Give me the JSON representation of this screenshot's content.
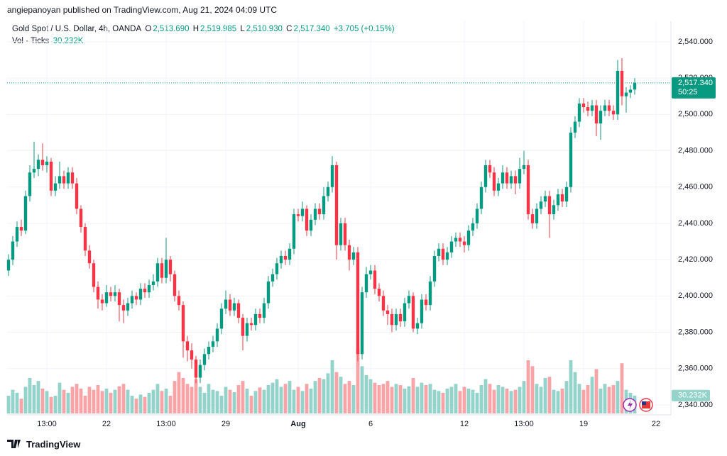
{
  "header": {
    "byline": "angiepanoyan published on TradingView.com, Aug 21, 2024 04:09 UTC"
  },
  "legend": {
    "symbol": "Gold Spot / U.S. Dollar, 4h, OANDA",
    "open_key": "O",
    "open": "2,513.690",
    "high_key": "H",
    "high": "2,519.985",
    "low_key": "L",
    "low": "2,510.930",
    "close_key": "C",
    "close": "2,517.340",
    "change": "+3.705 (+0.15%)"
  },
  "chart_data": {
    "type": "candlestick",
    "grid": true,
    "up_color": "#089981",
    "down_color": "#f23645",
    "volume_up_color": "#94d3ca",
    "volume_down_color": "#f7a4a9",
    "categories": [
      null,
      null,
      null,
      null,
      null,
      null,
      null,
      null,
      null,
      "13:00",
      null,
      null,
      null,
      null,
      null,
      null,
      null,
      null,
      null,
      null,
      null,
      null,
      null,
      "22",
      null,
      null,
      null,
      null,
      null,
      null,
      null,
      null,
      null,
      null,
      null,
      null,
      null,
      "13:00",
      null,
      null,
      null,
      null,
      null,
      null,
      null,
      null,
      null,
      null,
      null,
      null,
      null,
      "29",
      null,
      null,
      null,
      null,
      null,
      null,
      null,
      null,
      null,
      null,
      null,
      null,
      null,
      null,
      null,
      null,
      "Aug",
      null,
      null,
      null,
      null,
      null,
      null,
      null,
      null,
      null,
      null,
      null,
      null,
      null,
      null,
      null,
      null,
      "6",
      null,
      null,
      null,
      null,
      null,
      null,
      null,
      null,
      null,
      null,
      null,
      null,
      null,
      null,
      null,
      null,
      null,
      null,
      null,
      null,
      null,
      "12",
      null,
      null,
      null,
      null,
      null,
      null,
      null,
      null,
      null,
      null,
      null,
      null,
      null,
      "13:00",
      null,
      null,
      null,
      null,
      null,
      null,
      null,
      null,
      null,
      null,
      null,
      null,
      null,
      "19",
      null,
      null,
      null,
      null,
      null,
      null,
      null,
      null,
      null,
      null,
      null,
      null,
      null,
      null,
      null,
      null,
      "22"
    ],
    "open": [
      2414,
      2420,
      2430,
      2438,
      2436,
      2455,
      2468,
      2470,
      2475,
      2472,
      2474,
      2458,
      2462,
      2466,
      2462,
      2468,
      2462,
      2448,
      2438,
      2425,
      2418,
      2405,
      2398,
      2396,
      2402,
      2400,
      2402,
      2395,
      2392,
      2396,
      2400,
      2398,
      2404,
      2402,
      2406,
      2408,
      2418,
      2410,
      2420,
      2412,
      2400,
      2395,
      2375,
      2370,
      2365,
      2355,
      2362,
      2368,
      2372,
      2375,
      2382,
      2393,
      2398,
      2392,
      2396,
      2388,
      2378,
      2385,
      2384,
      2390,
      2388,
      2396,
      2408,
      2412,
      2418,
      2422,
      2420,
      2426,
      2445,
      2444,
      2448,
      2436,
      2442,
      2448,
      2445,
      2455,
      2460,
      2472,
      2428,
      2440,
      2428,
      2420,
      2424,
      2368,
      2402,
      2412,
      2414,
      2404,
      2400,
      2392,
      2390,
      2384,
      2390,
      2386,
      2396,
      2400,
      2382,
      2385,
      2398,
      2395,
      2408,
      2422,
      2426,
      2420,
      2424,
      2430,
      2432,
      2430,
      2428,
      2436,
      2440,
      2448,
      2460,
      2472,
      2468,
      2458,
      2462,
      2468,
      2462,
      2466,
      2462,
      2470,
      2472,
      2445,
      2440,
      2448,
      2452,
      2455,
      2445,
      2450,
      2456,
      2452,
      2460,
      2490,
      2496,
      2506,
      2504,
      2502,
      2505,
      2495,
      2502,
      2505,
      2502,
      2500,
      2524,
      2510,
      2512,
      2513.69,
      null,
      null,
      null,
      null,
      null
    ],
    "high": [
      2423,
      2433,
      2441,
      2442,
      2458,
      2472,
      2485,
      2478,
      2484,
      2477,
      2476,
      2466,
      2474,
      2469,
      2471,
      2471,
      2465,
      2450,
      2440,
      2428,
      2420,
      2408,
      2401,
      2406,
      2405,
      2406,
      2404,
      2398,
      2399,
      2403,
      2402,
      2407,
      2407,
      2409,
      2412,
      2421,
      2421,
      2432,
      2422,
      2414,
      2403,
      2397,
      2378,
      2374,
      2367,
      2365,
      2371,
      2375,
      2378,
      2385,
      2396,
      2403,
      2401,
      2399,
      2398,
      2390,
      2388,
      2388,
      2393,
      2393,
      2399,
      2411,
      2415,
      2421,
      2425,
      2425,
      2429,
      2448,
      2448,
      2452,
      2450,
      2445,
      2451,
      2451,
      2460,
      2463,
      2477,
      2474,
      2443,
      2443,
      2431,
      2427,
      2427,
      2405,
      2416,
      2417,
      2417,
      2407,
      2403,
      2395,
      2393,
      2393,
      2393,
      2399,
      2403,
      2402,
      2388,
      2401,
      2401,
      2411,
      2425,
      2429,
      2429,
      2427,
      2433,
      2435,
      2435,
      2433,
      2439,
      2443,
      2451,
      2463,
      2475,
      2475,
      2471,
      2465,
      2472,
      2471,
      2469,
      2469,
      2476,
      2480,
      2475,
      2448,
      2451,
      2455,
      2458,
      2458,
      2453,
      2459,
      2459,
      2463,
      2493,
      2499,
      2509,
      2509,
      2507,
      2508,
      2508,
      2505,
      2508,
      2508,
      2505,
      2530,
      2531,
      2515,
      2516,
      2519.985,
      null,
      null,
      null,
      null,
      null
    ],
    "low": [
      2411,
      2417,
      2427,
      2433,
      2434,
      2452,
      2465,
      2466,
      2469,
      2468,
      2455,
      2455,
      2459,
      2459,
      2459,
      2459,
      2445,
      2435,
      2422,
      2415,
      2402,
      2393,
      2392,
      2394,
      2397,
      2397,
      2386,
      2385,
      2389,
      2393,
      2395,
      2395,
      2399,
      2399,
      2403,
      2405,
      2407,
      2407,
      2408,
      2397,
      2392,
      2366,
      2364,
      2360,
      2352,
      2352,
      2359,
      2365,
      2369,
      2372,
      2379,
      2390,
      2389,
      2389,
      2385,
      2370,
      2375,
      2381,
      2381,
      2385,
      2385,
      2393,
      2405,
      2409,
      2415,
      2417,
      2417,
      2423,
      2441,
      2441,
      2433,
      2433,
      2439,
      2442,
      2442,
      2452,
      2457,
      2420,
      2425,
      2425,
      2414,
      2417,
      2364,
      2365,
      2399,
      2409,
      2401,
      2397,
      2389,
      2384,
      2380,
      2381,
      2383,
      2383,
      2393,
      2380,
      2379,
      2382,
      2392,
      2392,
      2405,
      2419,
      2417,
      2417,
      2421,
      2427,
      2427,
      2424,
      2425,
      2433,
      2437,
      2445,
      2457,
      2465,
      2455,
      2455,
      2459,
      2459,
      2459,
      2456,
      2459,
      2467,
      2442,
      2437,
      2437,
      2445,
      2449,
      2432,
      2442,
      2447,
      2449,
      2449,
      2457,
      2487,
      2493,
      2501,
      2499,
      2499,
      2488,
      2486,
      2499,
      2499,
      2497,
      2497,
      2505,
      2501,
      2509,
      2510.93,
      null,
      null,
      null,
      null,
      null
    ],
    "close": [
      2420,
      2430,
      2438,
      2436,
      2455,
      2468,
      2470,
      2475,
      2472,
      2474,
      2458,
      2462,
      2466,
      2462,
      2468,
      2462,
      2448,
      2438,
      2425,
      2418,
      2405,
      2398,
      2396,
      2402,
      2400,
      2402,
      2395,
      2392,
      2396,
      2400,
      2398,
      2404,
      2402,
      2406,
      2408,
      2418,
      2410,
      2420,
      2412,
      2400,
      2395,
      2375,
      2370,
      2365,
      2355,
      2362,
      2368,
      2372,
      2375,
      2382,
      2393,
      2398,
      2392,
      2396,
      2388,
      2378,
      2385,
      2384,
      2390,
      2388,
      2396,
      2408,
      2412,
      2418,
      2422,
      2420,
      2426,
      2445,
      2444,
      2448,
      2436,
      2442,
      2448,
      2445,
      2455,
      2460,
      2472,
      2428,
      2440,
      2428,
      2420,
      2424,
      2368,
      2402,
      2412,
      2414,
      2404,
      2400,
      2392,
      2390,
      2384,
      2390,
      2386,
      2396,
      2400,
      2382,
      2385,
      2398,
      2395,
      2408,
      2422,
      2426,
      2420,
      2424,
      2430,
      2432,
      2430,
      2428,
      2436,
      2440,
      2448,
      2460,
      2472,
      2468,
      2458,
      2462,
      2468,
      2462,
      2466,
      2462,
      2470,
      2472,
      2445,
      2440,
      2448,
      2452,
      2455,
      2445,
      2450,
      2456,
      2452,
      2460,
      2490,
      2496,
      2506,
      2504,
      2502,
      2505,
      2495,
      2502,
      2505,
      2502,
      2500,
      2524,
      2510,
      2512,
      2513.635,
      2517.34,
      null,
      null,
      null,
      null,
      null
    ],
    "ylim": [
      2334.5,
      2551.3
    ],
    "yticks": [
      {
        "value": 2340,
        "label": "2,340.000"
      },
      {
        "value": 2360,
        "label": "2,360.000"
      },
      {
        "value": 2380,
        "label": "2,380.000"
      },
      {
        "value": 2400,
        "label": "2,400.000"
      },
      {
        "value": 2420,
        "label": "2,420.000"
      },
      {
        "value": 2440,
        "label": "2,440.000"
      },
      {
        "value": 2460,
        "label": "2,460.000"
      },
      {
        "value": 2480,
        "label": "2,480.000"
      },
      {
        "value": 2500,
        "label": "2,500.000"
      },
      {
        "value": 2520,
        "label": "2,520.000"
      },
      {
        "value": 2540,
        "label": "2,540.000"
      }
    ],
    "volume": {
      "name": "Vol · Ticks",
      "value_label": "30.232K",
      "ylim": [
        0,
        120
      ],
      "values": [
        30,
        40,
        35,
        25,
        45,
        60,
        48,
        55,
        42,
        38,
        28,
        30,
        52,
        40,
        35,
        45,
        50,
        42,
        30,
        45,
        40,
        48,
        38,
        42,
        35,
        40,
        46,
        50,
        40,
        30,
        25,
        32,
        28,
        35,
        40,
        50,
        38,
        42,
        30,
        55,
        70,
        60,
        50,
        45,
        58,
        45,
        35,
        50,
        40,
        38,
        30,
        45,
        40,
        36,
        48,
        55,
        42,
        30,
        38,
        44,
        40,
        48,
        52,
        58,
        45,
        50,
        55,
        40,
        45,
        38,
        50,
        42,
        55,
        60,
        58,
        68,
        90,
        70,
        62,
        50,
        55,
        48,
        110,
        80,
        65,
        58,
        52,
        48,
        50,
        55,
        45,
        50,
        48,
        42,
        46,
        60,
        45,
        52,
        48,
        50,
        40,
        38,
        35,
        42,
        45,
        50,
        38,
        45,
        42,
        40,
        35,
        48,
        58,
        50,
        40,
        48,
        45,
        42,
        38,
        40,
        45,
        55,
        90,
        80,
        50,
        45,
        60,
        62,
        40,
        38,
        42,
        55,
        90,
        70,
        50,
        40,
        48,
        62,
        75,
        42,
        50,
        45,
        48,
        55,
        85,
        40,
        35,
        30.232,
        null,
        null,
        null,
        null,
        null
      ]
    },
    "last_price_label": "2,517.340",
    "countdown": "50:25"
  },
  "footer": {
    "brand": "TradingView"
  }
}
